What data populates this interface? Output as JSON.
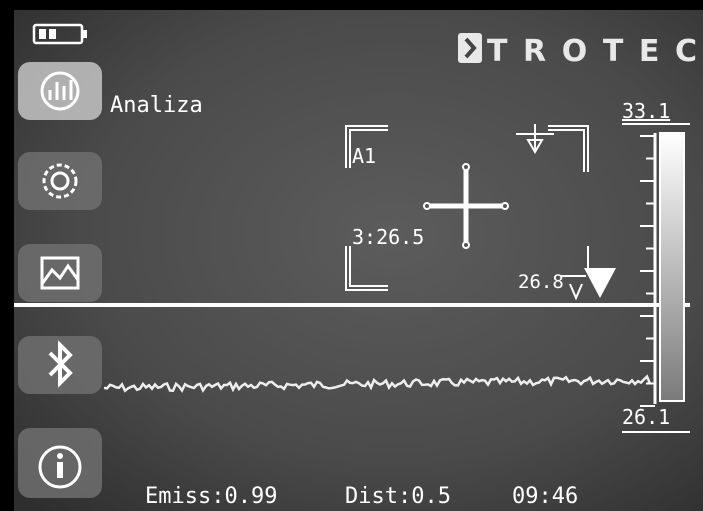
{
  "header": {
    "brand": "TROTEC"
  },
  "menu": {
    "active_label": "Analiza"
  },
  "measurement": {
    "area_label": "A1",
    "area_value": "3:26.5",
    "spot_value": "26.8"
  },
  "scale": {
    "max": "33.1",
    "min": "26.1"
  },
  "status": {
    "emissivity": "Emiss:0.99",
    "distance": "Dist:0.5",
    "time": "09:46"
  }
}
